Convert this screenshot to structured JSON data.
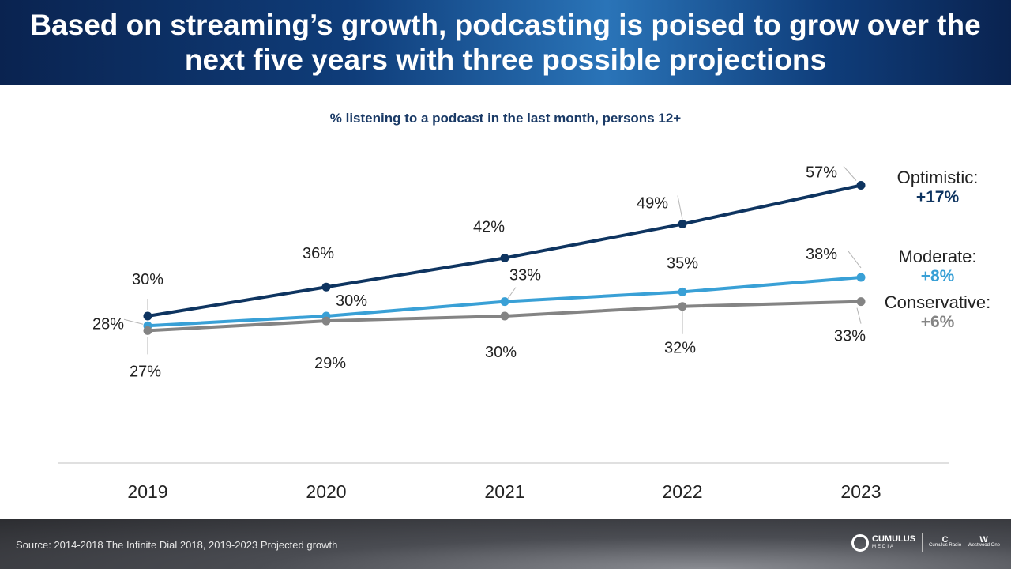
{
  "header": {
    "title": "Based on streaming’s growth, podcasting is poised to grow over the next five years with three possible projections"
  },
  "chart_data": {
    "type": "line",
    "title": "% listening to a podcast in the last month, persons 12+",
    "categories": [
      "2019",
      "2020",
      "2021",
      "2022",
      "2023"
    ],
    "ylim": [
      20,
      60
    ],
    "grid": false,
    "series": [
      {
        "name": "Optimistic:",
        "change": "+17%",
        "color": "#0e3460",
        "values": [
          30,
          36,
          42,
          49,
          57
        ],
        "labels": [
          "30%",
          "36%",
          "42%",
          "49%",
          "57%"
        ]
      },
      {
        "name": "Moderate:",
        "change": "+8%",
        "color": "#39a0d6",
        "values": [
          28,
          30,
          33,
          35,
          38
        ],
        "labels": [
          "28%",
          "30%",
          "33%",
          "35%",
          "38%"
        ]
      },
      {
        "name": "Conservative:",
        "change": "+6%",
        "color": "#848484",
        "values": [
          27,
          29,
          30,
          32,
          33
        ],
        "labels": [
          "27%",
          "29%",
          "30%",
          "32%",
          "33%"
        ]
      }
    ]
  },
  "footer": {
    "source": "Source: 2014-2018 The Infinite Dial 2018, 2019-2023 Projected growth",
    "logo_main": "CUMULUS",
    "logo_main_sub": "MEDIA",
    "logo_radio": "Cumulus Radio",
    "logo_westwood": "Westwood One"
  }
}
